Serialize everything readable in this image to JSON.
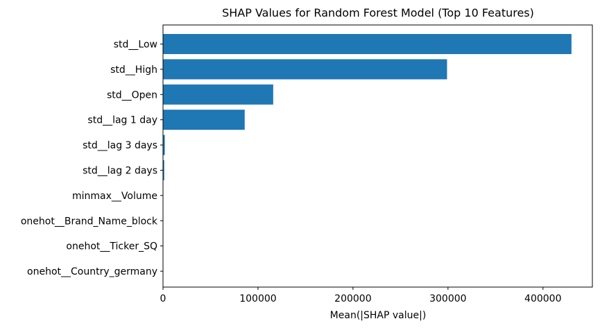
{
  "chart_data": {
    "type": "bar",
    "orientation": "horizontal",
    "title": "SHAP Values for Random Forest Model (Top 10 Features)",
    "xlabel": "Mean(|SHAP value|)",
    "ylabel": "",
    "xlim": [
      0,
      452000
    ],
    "x_ticks": [
      0,
      100000,
      200000,
      300000,
      400000
    ],
    "x_tick_labels": [
      "0",
      "100000",
      "200000",
      "300000",
      "400000"
    ],
    "categories": [
      "std__Low",
      "std__High",
      "std__Open",
      "std__lag 1 day",
      "std__lag 3 days",
      "std__lag 2 days",
      "minmax__Volume",
      "onehot__Brand_Name_block",
      "onehot__Ticker_SQ",
      "onehot__Country_germany"
    ],
    "values": [
      430000,
      299000,
      116000,
      86000,
      1900,
      1300,
      150,
      80,
      50,
      30
    ],
    "bar_color": "#1f77b4",
    "grid": false
  }
}
